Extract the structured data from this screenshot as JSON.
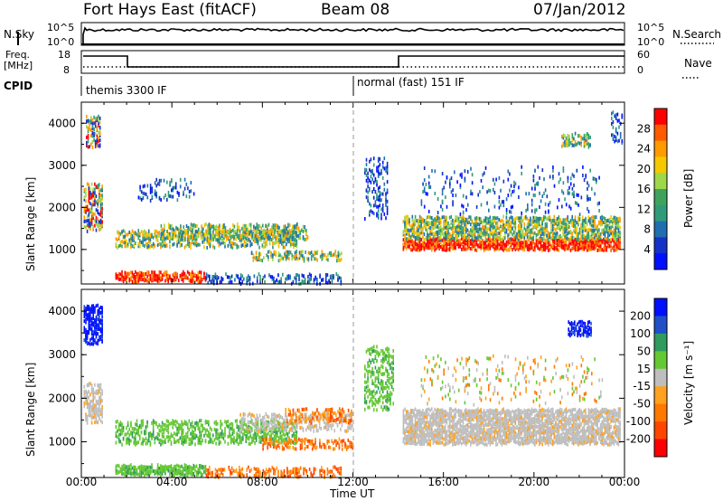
{
  "header": {
    "station": "Fort Hays East (fitACF)",
    "beam": "Beam 08",
    "date": "07/Jan/2012"
  },
  "strip_panels": {
    "nsky": {
      "label": "N.Sky",
      "ticks": [
        "10^5",
        "10^0"
      ]
    },
    "nsearch": {
      "label": "N.Search",
      "ticks": [
        "10^5",
        "10^0"
      ]
    },
    "freq": {
      "label_top": "Freq.",
      "label_bottom": "[MHz]",
      "ticks": [
        "18",
        "8"
      ]
    },
    "nave": {
      "label": "Nave",
      "ticks": [
        "60",
        "0"
      ]
    },
    "cpid": {
      "label": "CPID",
      "modes": [
        "themis 3300 IF",
        "normal (fast) 151 IF"
      ]
    }
  },
  "chart_data": [
    {
      "type": "heatmap",
      "name": "power-panel",
      "xlabel": "",
      "ylabel": "Slant Range [km]",
      "x_ticks": [
        "00:00",
        "04:00",
        "08:00",
        "12:00",
        "16:00",
        "20:00",
        "00:00"
      ],
      "xlim": [
        0,
        24
      ],
      "ylim": [
        180,
        4500
      ],
      "y_ticks": [
        1000,
        2000,
        3000,
        4000
      ],
      "colorbar": {
        "label": "Power [dB]",
        "ticks": [
          "28",
          "24",
          "20",
          "16",
          "12",
          "8",
          "4"
        ],
        "colors": [
          "#ff0000",
          "#ff5a00",
          "#ff9a00",
          "#f5c800",
          "#9ed84a",
          "#3fa35e",
          "#2f9b7a",
          "#1f6fb0",
          "#1432c8",
          "#0010ff"
        ]
      },
      "features": [
        {
          "t0": 0.1,
          "t1": 0.9,
          "r0": 1500,
          "r1": 4200,
          "level": "mixed"
        },
        {
          "t0": 1.5,
          "t1": 9.5,
          "r0": 900,
          "r1": 1650,
          "level": "medium"
        },
        {
          "t0": 1.5,
          "t1": 5.5,
          "r0": 300,
          "r1": 500,
          "level": "high"
        },
        {
          "t0": 14.2,
          "t1": 23.8,
          "r0": 1000,
          "r1": 1800,
          "level": "high"
        },
        {
          "t0": 21.2,
          "t1": 22.5,
          "r0": 3500,
          "r1": 3800,
          "level": "medium"
        }
      ]
    },
    {
      "type": "heatmap",
      "name": "velocity-panel",
      "xlabel": "Time UT",
      "ylabel": "Slant Range [km]",
      "x_ticks": [
        "00:00",
        "04:00",
        "08:00",
        "12:00",
        "16:00",
        "20:00",
        "00:00"
      ],
      "xlim": [
        0,
        24
      ],
      "ylim": [
        180,
        4500
      ],
      "y_ticks": [
        1000,
        2000,
        3000,
        4000
      ],
      "colorbar": {
        "label": "Velocity [m s⁻¹]",
        "ticks": [
          "200",
          "100",
          "50",
          "15",
          "-15",
          "-50",
          "-100",
          "-200"
        ],
        "colors": [
          "#0010ff",
          "#1f50c8",
          "#2f9b5e",
          "#64c832",
          "#bebebe",
          "#ffa01e",
          "#ff7800",
          "#ff4600",
          "#ff0000"
        ]
      },
      "features": [
        {
          "t0": 0.1,
          "t1": 0.9,
          "r0": 3300,
          "r1": 4200,
          "level": "toward"
        },
        {
          "t0": 1.5,
          "t1": 9.5,
          "r0": 900,
          "r1": 1650,
          "level": "weak-toward"
        },
        {
          "t0": 1.5,
          "t1": 5.5,
          "r0": 300,
          "r1": 500,
          "level": "weak-toward"
        },
        {
          "t0": 14.2,
          "t1": 23.8,
          "r0": 1000,
          "r1": 1800,
          "level": "near-zero"
        },
        {
          "t0": 21.5,
          "t1": 22.5,
          "r0": 3500,
          "r1": 3800,
          "level": "toward"
        }
      ]
    }
  ]
}
